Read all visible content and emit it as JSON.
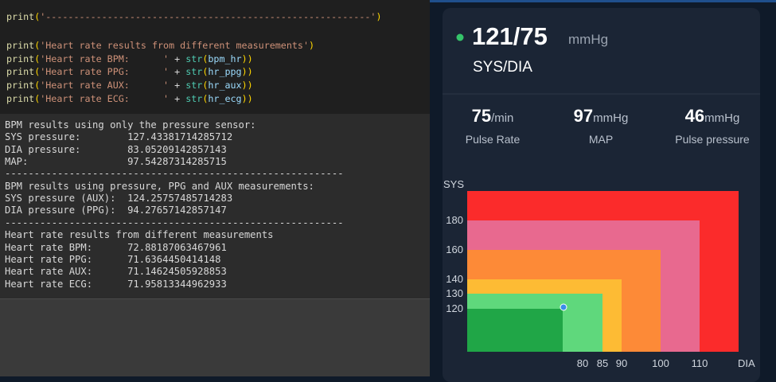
{
  "editor": {
    "code_lines": [
      [
        "print",
        "(",
        "'----------------------------------------------------------'",
        ")"
      ],
      [
        "print",
        "(",
        "'Heart rate results from different measurements'",
        ")"
      ],
      [
        "print",
        "(",
        "'Heart rate BPM:      '",
        " + ",
        "str",
        "(",
        "bpm_hr",
        ")",
        ")"
      ],
      [
        "print",
        "(",
        "'Heart rate PPG:      '",
        " + ",
        "str",
        "(",
        "hr_ppg",
        ")",
        ")"
      ],
      [
        "print",
        "(",
        "'Heart rate AUX:      '",
        " + ",
        "str",
        "(",
        "hr_aux",
        ")",
        ")"
      ],
      [
        "print",
        "(",
        "'Heart rate ECG:      '",
        " + ",
        "str",
        "(",
        "hr_ecg",
        ")",
        ")"
      ]
    ]
  },
  "output": {
    "lines": [
      "BPM results using only the pressure sensor:",
      "SYS pressure:        127.43381714285712",
      "DIA pressure:        83.05209142857143",
      "MAP:                 97.54287314285715",
      "----------------------------------------------------------",
      "BPM results using pressure, PPG and AUX measurements:",
      "SYS pressure (AUX):  124.25757485714283",
      "DIA pressure (PPG):  94.27657142857147",
      "----------------------------------------------------------",
      "Heart rate results from different measurements",
      "Heart rate BPM:      72.88187063467961",
      "Heart rate PPG:      71.6364450414148",
      "Heart rate AUX:      71.14624505928853",
      "Heart rate ECG:      71.95813344962933"
    ]
  },
  "reading": {
    "value": "121/75",
    "unit": "mmHg",
    "label": "SYS/DIA"
  },
  "stats": [
    {
      "value": "75",
      "unit": "/min",
      "label": "Pulse Rate"
    },
    {
      "value": "97",
      "unit": "mmHg",
      "label": "MAP"
    },
    {
      "value": "46",
      "unit": "mmHg",
      "label": "Pulse pressure"
    }
  ],
  "zone_chart": {
    "y_title": "SYS",
    "y_ticks": [
      "180",
      "160",
      "140",
      "130",
      "120"
    ],
    "x_ticks": [
      "80",
      "85",
      "90",
      "100",
      "110"
    ],
    "x_title": "DIA"
  }
}
